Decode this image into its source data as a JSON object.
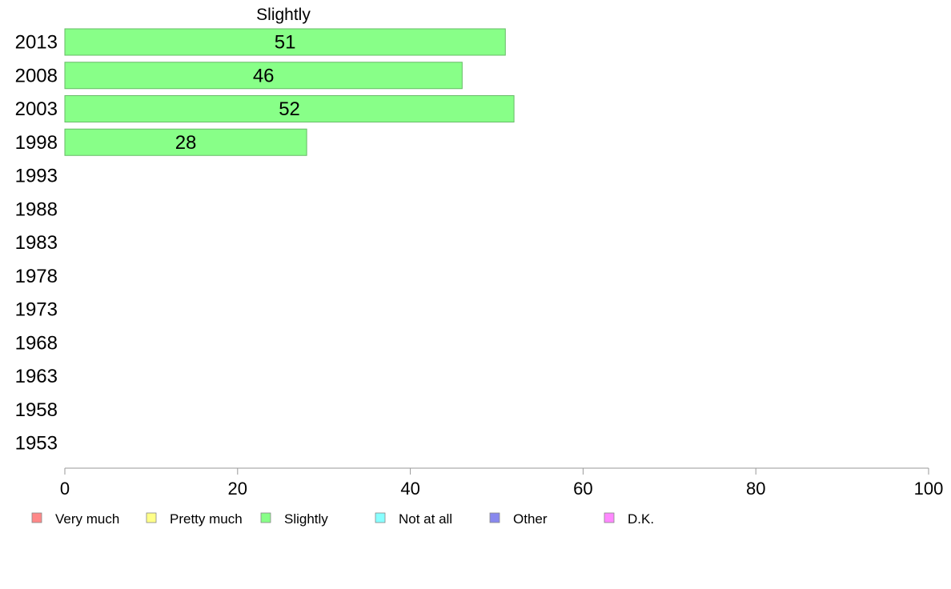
{
  "chart_data": {
    "type": "bar",
    "orientation": "horizontal",
    "title": "Slightly",
    "categories": [
      "2013",
      "2008",
      "2003",
      "1998",
      "1993",
      "1988",
      "1983",
      "1978",
      "1973",
      "1968",
      "1963",
      "1958",
      "1953"
    ],
    "series": [
      {
        "name": "Slightly",
        "color": "#88ff88",
        "values": [
          51,
          46,
          52,
          28,
          null,
          null,
          null,
          null,
          null,
          null,
          null,
          null,
          null
        ],
        "labels": [
          "51",
          "46",
          "52",
          "28",
          "",
          "",
          "",
          "",
          "",
          "",
          "",
          "",
          ""
        ]
      }
    ],
    "xlim": [
      0,
      100
    ],
    "xticks": [
      0,
      20,
      40,
      60,
      80,
      100
    ],
    "xtick_labels": [
      "0",
      "20",
      "40",
      "60",
      "80",
      "100"
    ],
    "xlabel": "",
    "ylabel": "",
    "grid": false,
    "legend_position": "bottom",
    "legend": [
      {
        "label": "Very much",
        "color": "#ff8888"
      },
      {
        "label": "Pretty much",
        "color": "#ffff88"
      },
      {
        "label": "Slightly",
        "color": "#88ff88"
      },
      {
        "label": "Not at all",
        "color": "#88ffff"
      },
      {
        "label": "Other",
        "color": "#8888ee"
      },
      {
        "label": "D.K.",
        "color": "#ff88ff"
      }
    ]
  }
}
